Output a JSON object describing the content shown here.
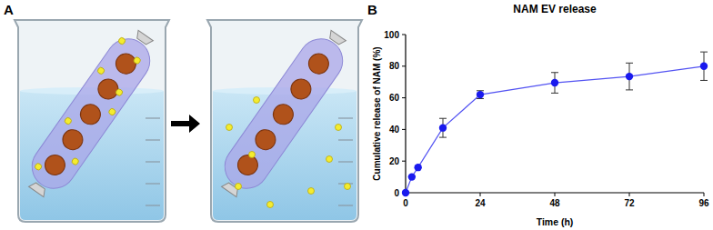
{
  "panel_labels": [
    "A",
    "B"
  ],
  "chart_data": {
    "type": "line",
    "title": "NAM EV release",
    "x_label": "Time (h)",
    "y_label": "Cumulative release of NAM (%)",
    "x": [
      0,
      2,
      4,
      12,
      24,
      48,
      72,
      96
    ],
    "series": [
      {
        "name": "NAM",
        "color": "#1a1aee",
        "marker": "circle",
        "line_style": "solid",
        "values": [
          0,
          10,
          16,
          41,
          62,
          69.5,
          73.5,
          80
        ],
        "errors": [
          0,
          0,
          0,
          6,
          2.5,
          6.5,
          8.5,
          9
        ]
      }
    ],
    "xlim": [
      0,
      96
    ],
    "xticks": [
      0,
      24,
      48,
      72,
      96
    ],
    "ylim": [
      0,
      100
    ],
    "yticks": [
      0,
      20,
      40,
      60,
      80,
      100
    ],
    "grid": false
  }
}
